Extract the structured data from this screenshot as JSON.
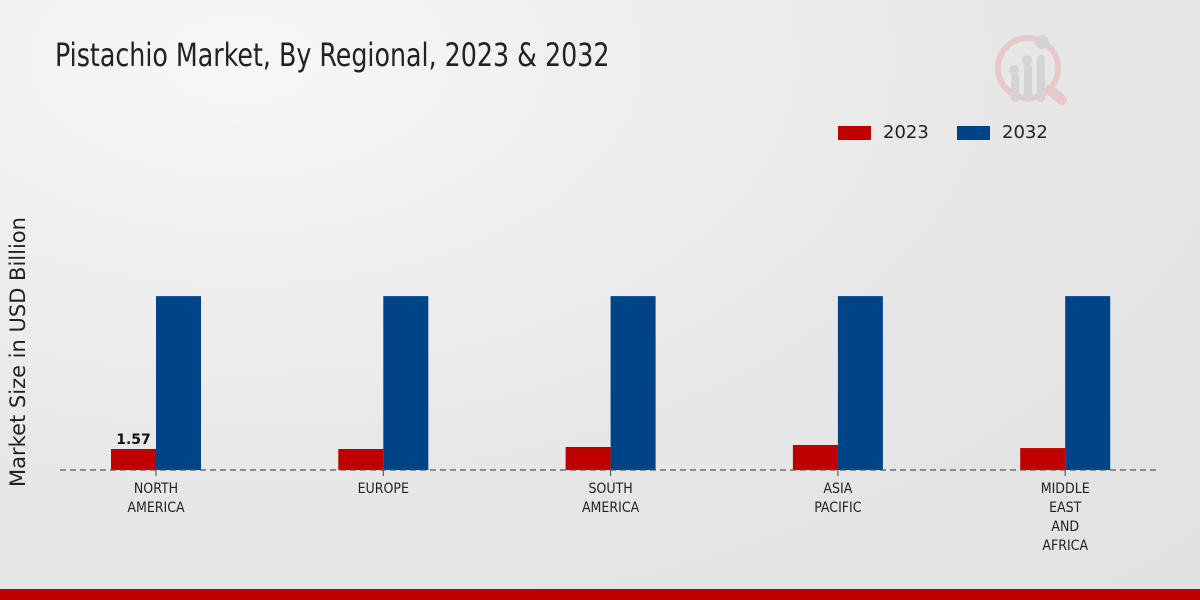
{
  "chart_data": {
    "type": "bar",
    "title": "Pistachio Market, By Regional, 2023 & 2032",
    "ylabel": "Market Size in USD Billion",
    "xlabel": "",
    "categories": [
      [
        "NORTH",
        "AMERICA"
      ],
      [
        "EUROPE"
      ],
      [
        "SOUTH",
        "AMERICA"
      ],
      [
        "ASIA",
        "PACIFIC"
      ],
      [
        "MIDDLE",
        "EAST",
        "AND",
        "AFRICA"
      ]
    ],
    "series": [
      {
        "name": "2023",
        "color": "#c00000",
        "values": [
          1.57,
          1.57,
          1.72,
          1.87,
          1.64
        ]
      },
      {
        "name": "2032",
        "color": "#004488",
        "values": [
          13.0,
          13.0,
          13.0,
          13.0,
          13.0
        ]
      }
    ],
    "data_labels": [
      {
        "series": 0,
        "index": 0,
        "text": "1.57"
      }
    ],
    "legend_position": "top-right",
    "grid": false
  }
}
